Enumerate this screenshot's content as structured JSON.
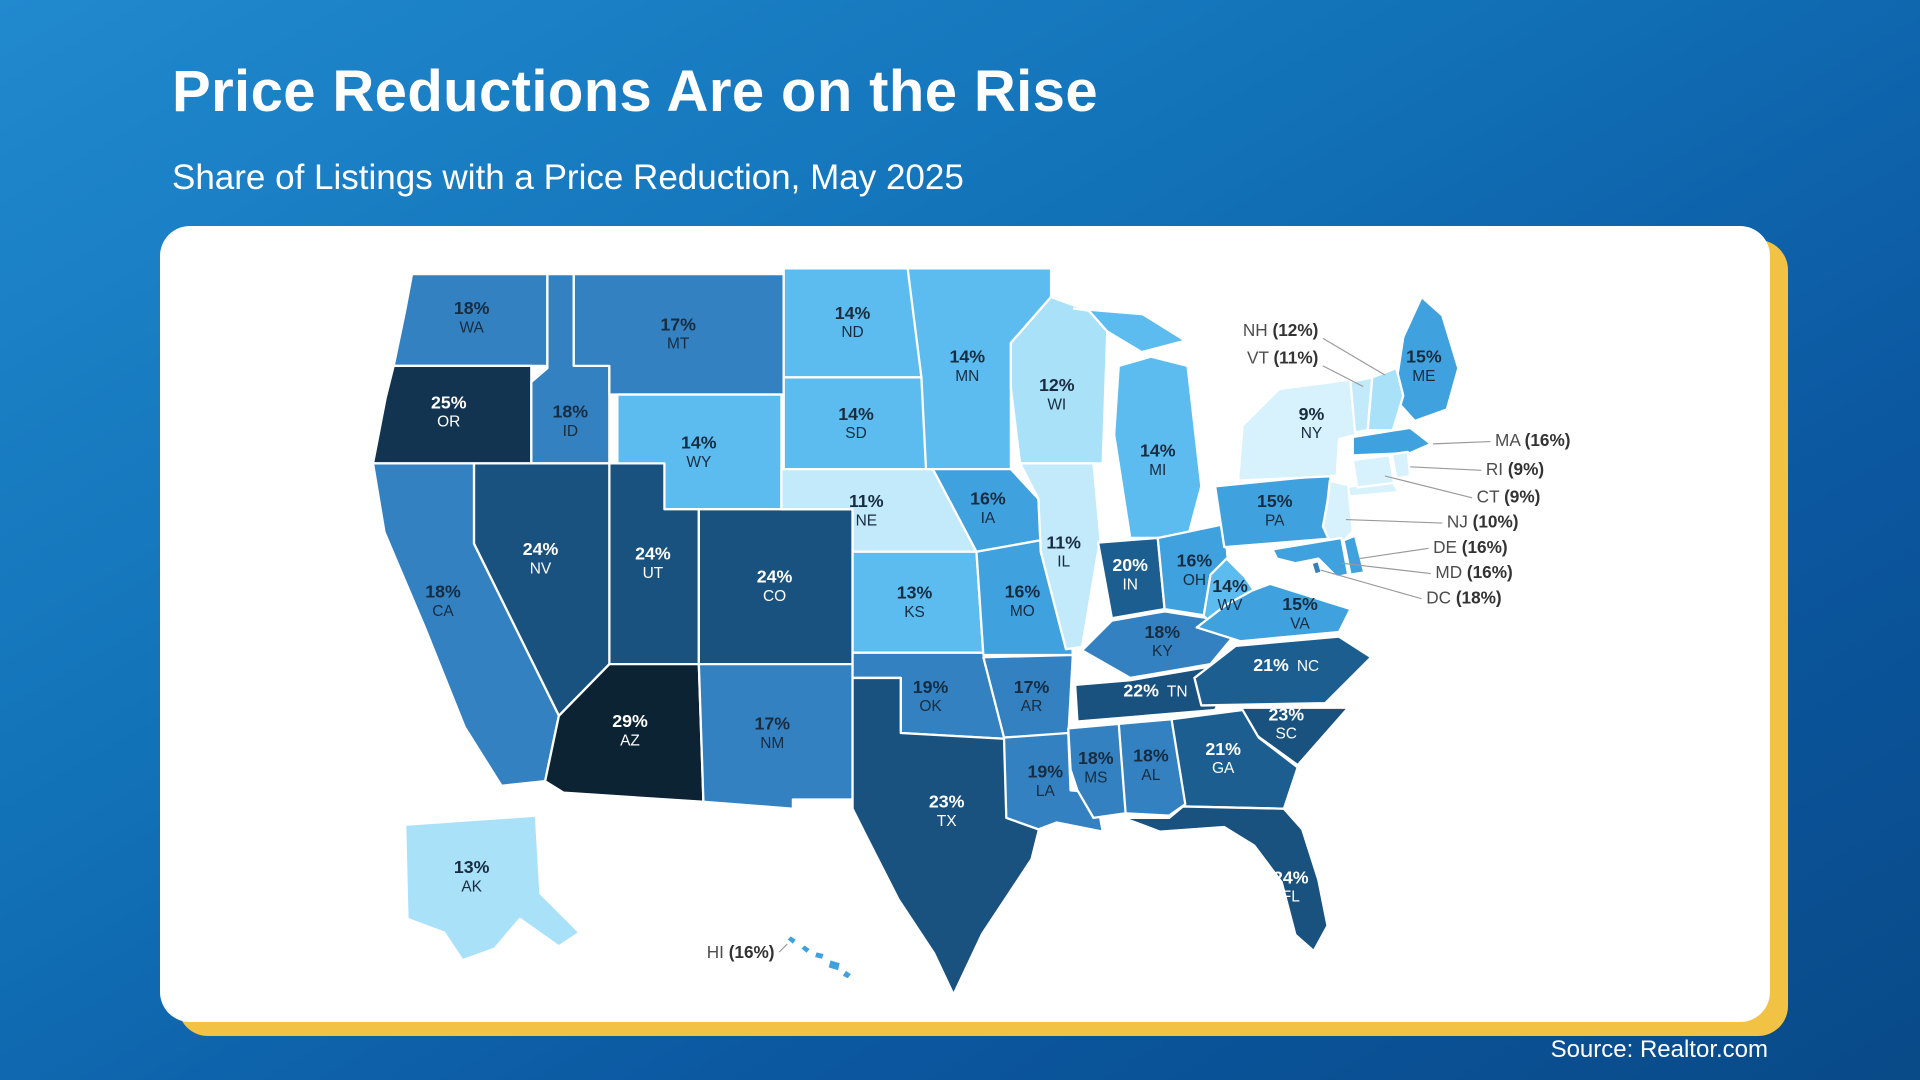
{
  "page": {
    "title": "Price Reductions Are on the Rise",
    "subtitle": "Share of Listings with a Price Reduction, May 2025",
    "source": "Source: Realtor.com"
  },
  "chart_data": {
    "type": "choropleth",
    "geography": "United States by state",
    "title": "Price Reductions Are on the Rise",
    "subtitle": "Share of Listings with a Price Reduction, May 2025",
    "metric": "Share of listings with a price reduction",
    "period": "May 2025",
    "unit": "%",
    "source": "Realtor.com",
    "states": [
      {
        "abbr": "WA",
        "value": 18
      },
      {
        "abbr": "OR",
        "value": 25
      },
      {
        "abbr": "CA",
        "value": 18
      },
      {
        "abbr": "ID",
        "value": 18
      },
      {
        "abbr": "NV",
        "value": 24
      },
      {
        "abbr": "UT",
        "value": 24
      },
      {
        "abbr": "AZ",
        "value": 29
      },
      {
        "abbr": "MT",
        "value": 17
      },
      {
        "abbr": "WY",
        "value": 14
      },
      {
        "abbr": "CO",
        "value": 24
      },
      {
        "abbr": "NM",
        "value": 17
      },
      {
        "abbr": "ND",
        "value": 14
      },
      {
        "abbr": "SD",
        "value": 14
      },
      {
        "abbr": "NE",
        "value": 11
      },
      {
        "abbr": "KS",
        "value": 13
      },
      {
        "abbr": "OK",
        "value": 19
      },
      {
        "abbr": "TX",
        "value": 23
      },
      {
        "abbr": "MN",
        "value": 14
      },
      {
        "abbr": "IA",
        "value": 16
      },
      {
        "abbr": "MO",
        "value": 16
      },
      {
        "abbr": "AR",
        "value": 17
      },
      {
        "abbr": "LA",
        "value": 19
      },
      {
        "abbr": "WI",
        "value": 12
      },
      {
        "abbr": "IL",
        "value": 11
      },
      {
        "abbr": "MS",
        "value": 18
      },
      {
        "abbr": "AL",
        "value": 18
      },
      {
        "abbr": "MI",
        "value": 14
      },
      {
        "abbr": "IN",
        "value": 20
      },
      {
        "abbr": "OH",
        "value": 16
      },
      {
        "abbr": "KY",
        "value": 18
      },
      {
        "abbr": "TN",
        "value": 22
      },
      {
        "abbr": "GA",
        "value": 21
      },
      {
        "abbr": "SC",
        "value": 23
      },
      {
        "abbr": "NC",
        "value": 21
      },
      {
        "abbr": "VA",
        "value": 15
      },
      {
        "abbr": "WV",
        "value": 14
      },
      {
        "abbr": "PA",
        "value": 15
      },
      {
        "abbr": "NY",
        "value": 9
      },
      {
        "abbr": "NJ",
        "value": 10
      },
      {
        "abbr": "DE",
        "value": 16
      },
      {
        "abbr": "MD",
        "value": 16
      },
      {
        "abbr": "DC",
        "value": 18
      },
      {
        "abbr": "CT",
        "value": 9
      },
      {
        "abbr": "RI",
        "value": 9
      },
      {
        "abbr": "MA",
        "value": 16
      },
      {
        "abbr": "VT",
        "value": 11
      },
      {
        "abbr": "NH",
        "value": 12
      },
      {
        "abbr": "ME",
        "value": 15
      },
      {
        "abbr": "FL",
        "value": 24
      },
      {
        "abbr": "AK",
        "value": 13
      },
      {
        "abbr": "HI",
        "value": 16
      }
    ],
    "callout_states": [
      "NH",
      "VT",
      "MA",
      "RI",
      "CT",
      "NJ",
      "DE",
      "MD",
      "DC",
      "HI"
    ],
    "callout_format": "ABBR (VALUE%)",
    "legend": "none shown",
    "color_scale": [
      {
        "min": 29,
        "color": "#0C2334"
      },
      {
        "min": 25,
        "color": "#123450"
      },
      {
        "min": 22,
        "color": "#19517F"
      },
      {
        "min": 20,
        "color": "#1D5E90"
      },
      {
        "min": 17,
        "color": "#3381C1"
      },
      {
        "min": 15,
        "color": "#40A1DF"
      },
      {
        "min": 14,
        "color": "#5CBCF0"
      },
      {
        "min": 12,
        "color": "#A9E1F9"
      },
      {
        "min": 11,
        "color": "#C2EAFB"
      },
      {
        "min": 0,
        "color": "#D8F2FD"
      }
    ]
  }
}
